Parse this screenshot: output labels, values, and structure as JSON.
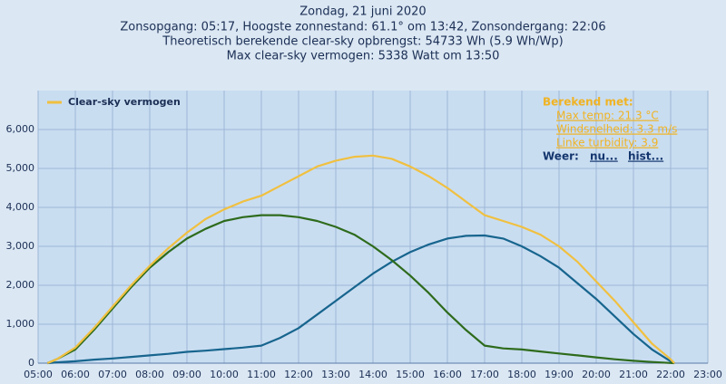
{
  "chart_data": {
    "type": "line",
    "title": "Zondag, 21 juni 2020",
    "subtitles": [
      "Zonsopgang: 05:17, Hoogste zonnestand: 61.1° om 13:42, Zonsondergang: 22:06",
      "Theoretisch berekende clear-sky opbrengst: 54733 Wh (5.9 Wh/Wp)",
      "Max clear-sky vermogen: 5338 Watt om 13:50"
    ],
    "x": [
      5.25,
      5.5,
      6,
      6.5,
      7,
      7.5,
      8,
      8.5,
      9,
      9.5,
      10,
      10.5,
      11,
      11.5,
      12,
      12.5,
      13,
      13.5,
      14,
      14.5,
      15,
      15.5,
      16,
      16.5,
      17,
      17.5,
      18,
      18.5,
      19,
      19.5,
      20,
      20.5,
      21,
      21.5,
      22,
      22.1
    ],
    "series": [
      {
        "name": "Clear-sky vermogen",
        "color": "#f0c040",
        "values": [
          0,
          100,
          400,
          900,
          1450,
          2000,
          2500,
          2950,
          3350,
          3700,
          3950,
          4150,
          4300,
          4550,
          4800,
          5050,
          5200,
          5300,
          5330,
          5250,
          5050,
          4800,
          4500,
          4150,
          3800,
          3650,
          3500,
          3300,
          3000,
          2600,
          2100,
          1600,
          1050,
          500,
          100,
          0
        ]
      },
      {
        "color": "#2e6b1c",
        "values": [
          0,
          100,
          350,
          850,
          1400,
          1950,
          2450,
          2850,
          3200,
          3450,
          3650,
          3750,
          3800,
          3800,
          3750,
          3650,
          3500,
          3300,
          3000,
          2650,
          2250,
          1800,
          1300,
          850,
          450,
          380,
          350,
          300,
          250,
          200,
          150,
          100,
          60,
          30,
          5,
          0
        ]
      },
      {
        "color": "#17658e",
        "values": [
          0,
          20,
          50,
          90,
          120,
          160,
          200,
          240,
          290,
          320,
          360,
          400,
          450,
          650,
          900,
          1250,
          1600,
          1950,
          2300,
          2600,
          2850,
          3050,
          3200,
          3270,
          3280,
          3200,
          3000,
          2750,
          2450,
          2050,
          1650,
          1200,
          750,
          350,
          50,
          0
        ]
      }
    ],
    "xlim": [
      5,
      23
    ],
    "xticks": [
      {
        "value": 5,
        "label": "05:00"
      },
      {
        "value": 6,
        "label": "06:00"
      },
      {
        "value": 7,
        "label": "07:00"
      },
      {
        "value": 8,
        "label": "08:00"
      },
      {
        "value": 9,
        "label": "09:00"
      },
      {
        "value": 10,
        "label": "10:00"
      },
      {
        "value": 11,
        "label": "11:00"
      },
      {
        "value": 12,
        "label": "12:00"
      },
      {
        "value": 13,
        "label": "13:00"
      },
      {
        "value": 14,
        "label": "14:00"
      },
      {
        "value": 15,
        "label": "15:00"
      },
      {
        "value": 16,
        "label": "16:00"
      },
      {
        "value": 17,
        "label": "17:00"
      },
      {
        "value": 18,
        "label": "18:00"
      },
      {
        "value": 19,
        "label": "19:00"
      },
      {
        "value": 20,
        "label": "20:00"
      },
      {
        "value": 21,
        "label": "21:00"
      },
      {
        "value": 22,
        "label": "22:00"
      },
      {
        "value": 23,
        "label": "23:00"
      }
    ],
    "ylim": [
      0,
      7000
    ],
    "yticks": [
      0,
      {
        "value": 1000,
        "label": "1,000"
      },
      {
        "value": 2000,
        "label": "2,000"
      },
      {
        "value": 3000,
        "label": "3,000"
      },
      {
        "value": 4000,
        "label": "4,000"
      },
      {
        "value": 5000,
        "label": "5,000"
      },
      {
        "value": 6000,
        "label": "6,000"
      }
    ],
    "grid": true,
    "legend": "top-left",
    "annotation": {
      "heading": "Berekend met:",
      "lines": [
        "Max temp: 21.3 °C",
        "Windsnelheid: 3.3 m/s",
        "Linke turbidity: 3.9"
      ],
      "weather_label": "Weer:",
      "links": [
        "nu...",
        "hist..."
      ]
    }
  }
}
